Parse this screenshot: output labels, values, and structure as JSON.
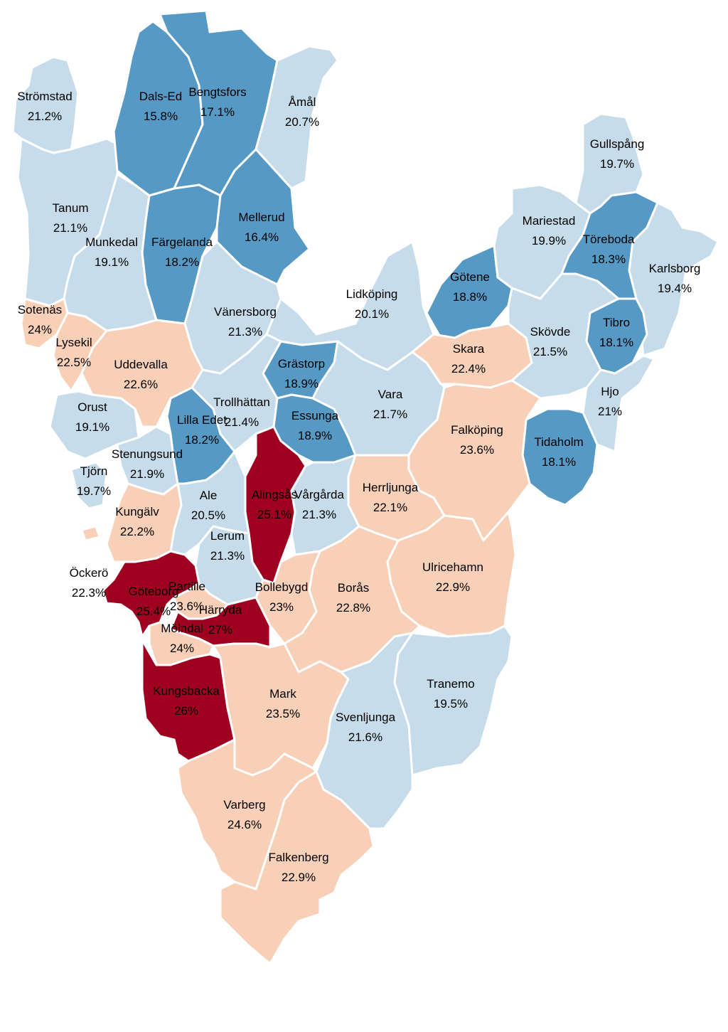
{
  "legend_colors": {
    "dark_blue": "#5599c4",
    "light_blue": "#c6dcea",
    "peach": "#f8d0b8",
    "dark_red": "#a00020"
  },
  "municipalities": {
    "stromstad": {
      "name": "Strömstad",
      "value": "21.2%",
      "color": "#c6dcea"
    },
    "dalsed": {
      "name": "Dals-Ed",
      "value": "15.8%",
      "color": "#5599c4"
    },
    "bengtsfors": {
      "name": "Bengtsfors",
      "value": "17.1%",
      "color": "#5599c4"
    },
    "amal": {
      "name": "Åmål",
      "value": "20.7%",
      "color": "#c6dcea"
    },
    "gullspang": {
      "name": "Gullspång",
      "value": "19.7%",
      "color": "#c6dcea"
    },
    "tanum": {
      "name": "Tanum",
      "value": "21.1%",
      "color": "#c6dcea"
    },
    "munkedal": {
      "name": "Munkedal",
      "value": "19.1%",
      "color": "#c6dcea"
    },
    "fargelanda": {
      "name": "Färgelanda",
      "value": "18.2%",
      "color": "#5599c4"
    },
    "mellerud": {
      "name": "Mellerud",
      "value": "16.4%",
      "color": "#5599c4"
    },
    "mariestad": {
      "name": "Mariestad",
      "value": "19.9%",
      "color": "#c6dcea"
    },
    "toreboda": {
      "name": "Töreboda",
      "value": "18.3%",
      "color": "#5599c4"
    },
    "karlsborg": {
      "name": "Karlsborg",
      "value": "19.4%",
      "color": "#c6dcea"
    },
    "sotenas": {
      "name": "Sotenäs",
      "value": "24%",
      "color": "#f8d0b8"
    },
    "lysekil": {
      "name": "Lysekil",
      "value": "22.5%",
      "color": "#f8d0b8"
    },
    "vanersborg": {
      "name": "Vänersborg",
      "value": "21.3%",
      "color": "#c6dcea"
    },
    "lidkoping": {
      "name": "Lidköping",
      "value": "20.1%",
      "color": "#c6dcea"
    },
    "gotene": {
      "name": "Götene",
      "value": "18.8%",
      "color": "#5599c4"
    },
    "skovde": {
      "name": "Skövde",
      "value": "21.5%",
      "color": "#c6dcea"
    },
    "tibro": {
      "name": "Tibro",
      "value": "18.1%",
      "color": "#5599c4"
    },
    "uddevalla": {
      "name": "Uddevalla",
      "value": "22.6%",
      "color": "#f8d0b8"
    },
    "grastorp": {
      "name": "Grästorp",
      "value": "18.9%",
      "color": "#5599c4"
    },
    "skara": {
      "name": "Skara",
      "value": "22.4%",
      "color": "#f8d0b8"
    },
    "hjo": {
      "name": "Hjo",
      "value": "21%",
      "color": "#c6dcea"
    },
    "orust": {
      "name": "Orust",
      "value": "19.1%",
      "color": "#c6dcea"
    },
    "trollhattan": {
      "name": "Trollhättan",
      "value": "21.4%",
      "color": "#c6dcea"
    },
    "liledet": {
      "name": "Lilla Edet",
      "value": "18.2%",
      "color": "#5599c4"
    },
    "essunga": {
      "name": "Essunga",
      "value": "18.9%",
      "color": "#5599c4"
    },
    "vara": {
      "name": "Vara",
      "value": "21.7%",
      "color": "#c6dcea"
    },
    "falkoping": {
      "name": "Falköping",
      "value": "23.6%",
      "color": "#f8d0b8"
    },
    "tidaholm": {
      "name": "Tidaholm",
      "value": "18.1%",
      "color": "#5599c4"
    },
    "stenungsund": {
      "name": "Stenungsund",
      "value": "21.9%",
      "color": "#c6dcea"
    },
    "tjorn": {
      "name": "Tjörn",
      "value": "19.7%",
      "color": "#c6dcea"
    },
    "ale": {
      "name": "Ale",
      "value": "20.5%",
      "color": "#c6dcea"
    },
    "alingsas": {
      "name": "Alingsås",
      "value": "25.1%",
      "color": "#a00020"
    },
    "vargarda": {
      "name": "Vårgårda",
      "value": "21.3%",
      "color": "#c6dcea"
    },
    "herrljunga": {
      "name": "Herrljunga",
      "value": "22.1%",
      "color": "#f8d0b8"
    },
    "kungalv": {
      "name": "Kungälv",
      "value": "22.2%",
      "color": "#f8d0b8"
    },
    "lerum": {
      "name": "Lerum",
      "value": "21.3%",
      "color": "#c6dcea"
    },
    "ulricehamn": {
      "name": "Ulricehamn",
      "value": "22.9%",
      "color": "#f8d0b8"
    },
    "ockero": {
      "name": "Öckerö",
      "value": "22.3%",
      "color": "#f8d0b8"
    },
    "goteborg": {
      "name": "Göteborg",
      "value": "25.4%",
      "color": "#a00020"
    },
    "partille": {
      "name": "Partille",
      "value": "23.6%",
      "color": "#f8d0b8"
    },
    "bollebygd": {
      "name": "Bollebygd",
      "value": "23%",
      "color": "#f8d0b8"
    },
    "boras": {
      "name": "Borås",
      "value": "22.8%",
      "color": "#f8d0b8"
    },
    "harryda": {
      "name": "Härryda",
      "value": "27%",
      "color": "#a00020"
    },
    "molndal": {
      "name": "Mölndal",
      "value": "24%",
      "color": "#f8d0b8"
    },
    "kungsbacka": {
      "name": "Kungsbacka",
      "value": "26%",
      "color": "#a00020"
    },
    "mark": {
      "name": "Mark",
      "value": "23.5%",
      "color": "#f8d0b8"
    },
    "svenljunga": {
      "name": "Svenljunga",
      "value": "21.6%",
      "color": "#c6dcea"
    },
    "tranemo": {
      "name": "Tranemo",
      "value": "19.5%",
      "color": "#c6dcea"
    },
    "varberg": {
      "name": "Varberg",
      "value": "24.6%",
      "color": "#f8d0b8"
    },
    "falkenberg": {
      "name": "Falkenberg",
      "value": "22.9%",
      "color": "#f8d0b8"
    }
  }
}
